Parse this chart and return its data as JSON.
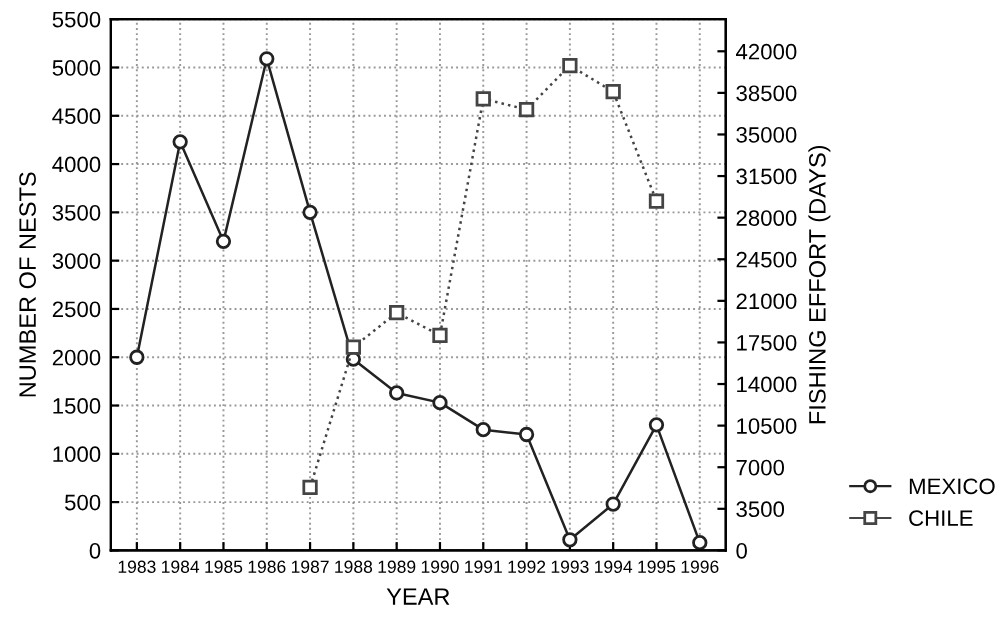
{
  "chart_data": {
    "type": "line",
    "xlabel": "YEAR",
    "ylabel": "NUMBER OF NESTS",
    "y2label": "FISHING EFFORT (DAYS)",
    "xlim": [
      1982.4,
      1996.6
    ],
    "xticks": [
      1983,
      1984,
      1985,
      1986,
      1987,
      1988,
      1989,
      1990,
      1991,
      1992,
      1993,
      1994,
      1995,
      1996
    ],
    "ylim": [
      0,
      5500
    ],
    "yticks": [
      0,
      500,
      1000,
      1500,
      2000,
      2500,
      3000,
      3500,
      4000,
      4500,
      5000,
      5500
    ],
    "y2lim": [
      0,
      44700
    ],
    "y2ticks": [
      0,
      3500,
      7000,
      10500,
      14000,
      17500,
      21000,
      24500,
      28000,
      31500,
      35000,
      38500,
      42000
    ],
    "grid": true,
    "legend": "bottom right",
    "series": [
      {
        "name": "MEXICO",
        "color": "#222222",
        "marker": "circle",
        "line_style": "solid",
        "x": [
          1983,
          1984,
          1985,
          1986,
          1987,
          1988,
          1989,
          1990,
          1991,
          1992,
          1993,
          1994,
          1995,
          1996
        ],
        "values": [
          2000,
          4230,
          3200,
          5090,
          3500,
          1980,
          1630,
          1530,
          1250,
          1200,
          110,
          480,
          1300,
          80
        ]
      },
      {
        "name": "CHILE",
        "color": "#444444",
        "marker": "square",
        "line_style": "dotted",
        "axis": "y2",
        "x": [
          1987,
          1988,
          1989,
          1990,
          1991,
          1992,
          1993,
          1994,
          1995
        ],
        "values": [
          5300,
          17100,
          20000,
          18100,
          38000,
          37100,
          40800,
          38600,
          29400
        ]
      }
    ]
  }
}
